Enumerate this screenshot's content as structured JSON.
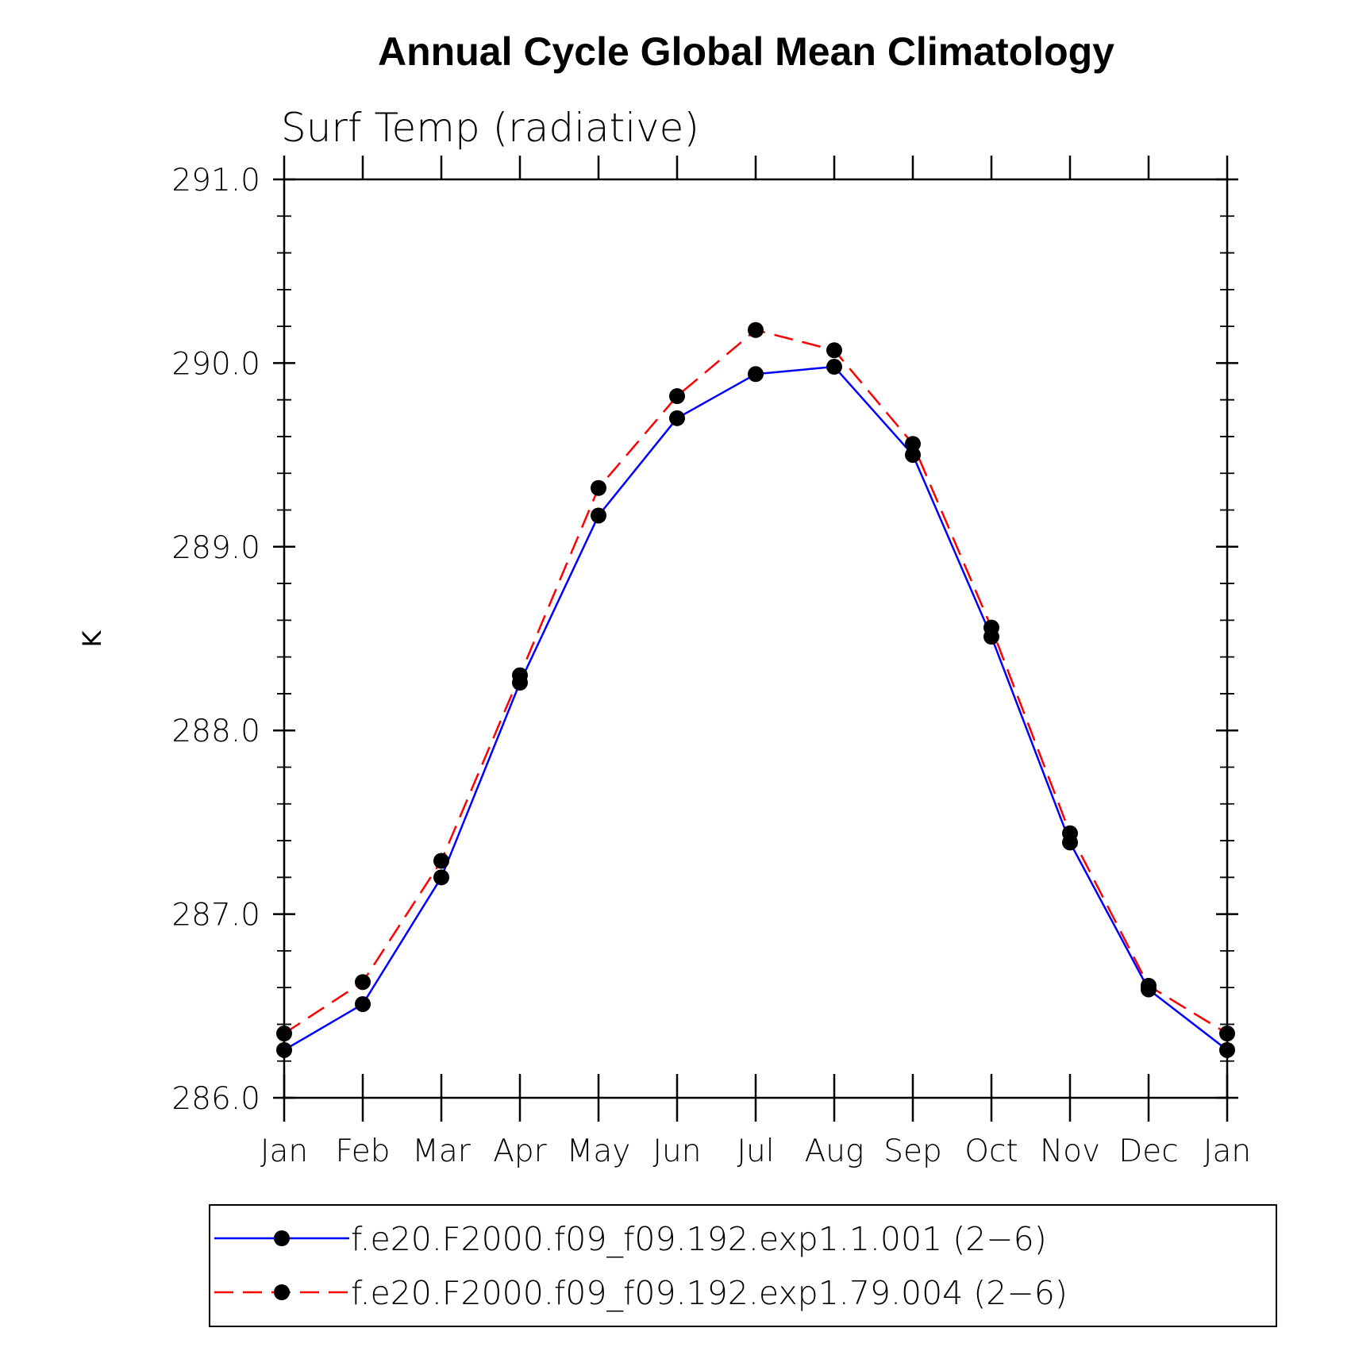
{
  "chart_data": {
    "type": "line",
    "title": "Annual Cycle Global Mean Climatology",
    "subtitle": "Surf Temp (radiative)",
    "xlabel": "",
    "ylabel": "K",
    "categories": [
      "Jan",
      "Feb",
      "Mar",
      "Apr",
      "May",
      "Jun",
      "Jul",
      "Aug",
      "Sep",
      "Oct",
      "Nov",
      "Dec",
      "Jan"
    ],
    "ylim": [
      286.0,
      291.0
    ],
    "yticks": [
      "286.0",
      "287.0",
      "288.0",
      "289.0",
      "290.0",
      "291.0"
    ],
    "grid": false,
    "legend_position": "bottom",
    "series": [
      {
        "name": "f.e20.F2000.f09_f09.192.exp1.1.001 (2−6)",
        "color": "#0000ff",
        "dash": "solid",
        "marker": "filled-circle",
        "values": [
          286.26,
          286.51,
          287.2,
          288.26,
          289.17,
          289.7,
          289.94,
          289.98,
          289.5,
          288.51,
          287.39,
          286.59,
          286.26
        ]
      },
      {
        "name": "f.e20.F2000.f09_f09.192.exp1.79.004 (2−6)",
        "color": "#ff0000",
        "dash": "dashed",
        "marker": "filled-circle",
        "values": [
          286.35,
          286.63,
          287.29,
          288.3,
          289.32,
          289.82,
          290.18,
          290.07,
          289.56,
          288.56,
          287.44,
          286.61,
          286.35
        ]
      }
    ]
  }
}
